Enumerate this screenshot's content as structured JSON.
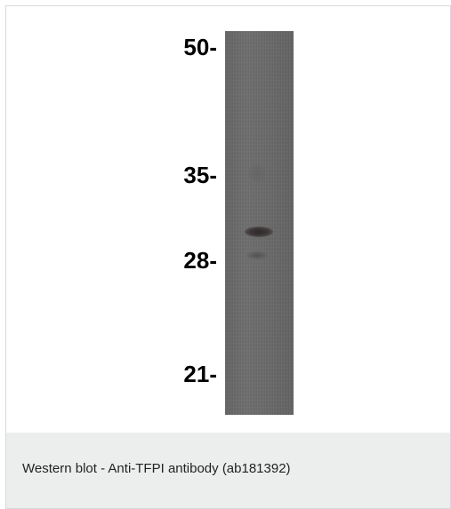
{
  "blot": {
    "markers": [
      {
        "label": "50-",
        "kda": 50
      },
      {
        "label": "35-",
        "kda": 35
      },
      {
        "label": "28-",
        "kda": 28
      },
      {
        "label": "21-",
        "kda": 21
      }
    ]
  },
  "caption": {
    "text": "Western blot - Anti-TFPI antibody (ab181392)"
  }
}
